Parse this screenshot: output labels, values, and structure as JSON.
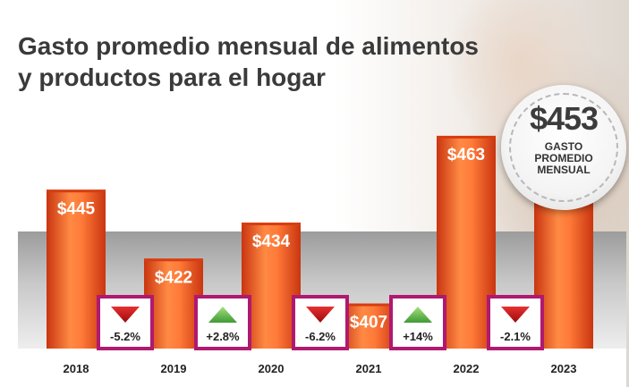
{
  "title_lines": [
    "Gasto promedio mensual de alimentos",
    "y productos para el hogar"
  ],
  "badge": {
    "value": "$453",
    "label_lines": [
      "GASTO",
      "PROMEDIO",
      "MENSUAL"
    ]
  },
  "colors": {
    "bar_top": "#d63c12",
    "bar_mid": "#ff7e3c",
    "bar_bottom": "#e04a14",
    "change_border": "#b01970",
    "down_arrow": "#d11f1f",
    "up_arrow": "#6ac05a"
  },
  "chart_data": {
    "type": "bar",
    "categories": [
      "2018",
      "2019",
      "2020",
      "2021",
      "2022",
      "2023"
    ],
    "values": [
      445,
      422,
      434,
      407,
      463,
      453
    ],
    "value_labels": [
      "$445",
      "$422",
      "$434",
      "$407",
      "$463",
      ""
    ],
    "changes": [
      {
        "label": "-5.2%",
        "direction": "down"
      },
      {
        "label": "+2.8%",
        "direction": "up"
      },
      {
        "label": "-6.2%",
        "direction": "down"
      },
      {
        "label": "+14%",
        "direction": "up"
      },
      {
        "label": "-2.1%",
        "direction": "down"
      }
    ],
    "title": "Gasto promedio mensual de alimentos y productos para el hogar",
    "xlabel": "",
    "ylabel": "",
    "grid": false,
    "legend": "none"
  }
}
